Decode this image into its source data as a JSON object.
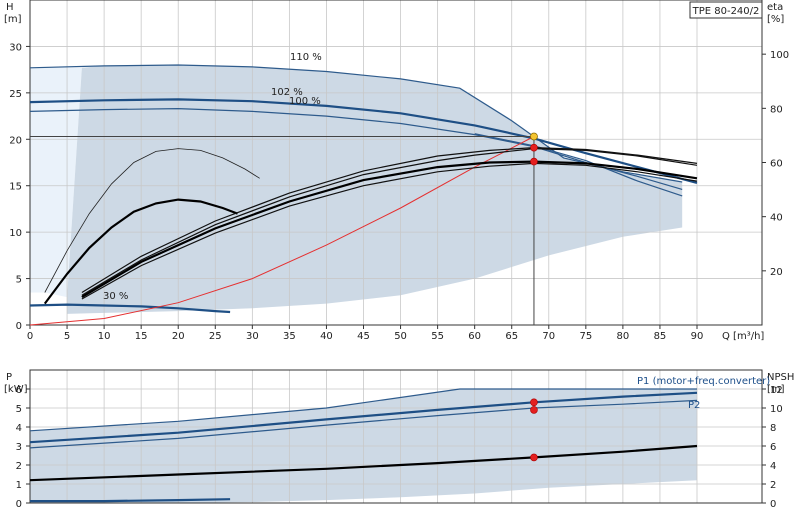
{
  "chart_title": "TPE 80-240/2",
  "colors": {
    "area": "#cdd9e5",
    "curve_blue": "#1e4f85",
    "system_curve": "#e53030",
    "duty_marker": "#e41f1f",
    "duty_marker_top": "#f4c430"
  },
  "chart_data": [
    {
      "type": "line",
      "name": "head-curves",
      "ylabel_left": [
        "H",
        "[m]"
      ],
      "ylabel_right": [
        "eta",
        "[%]"
      ],
      "xlabel": "Q [m³/h]",
      "xlim": [
        0,
        90
      ],
      "ylim": [
        0,
        35
      ],
      "y2lim": [
        0,
        120
      ],
      "xticks": [
        0,
        5,
        10,
        15,
        20,
        25,
        30,
        35,
        40,
        45,
        50,
        55,
        60,
        65,
        70,
        75,
        80,
        85,
        90
      ],
      "yticks": [
        0,
        5,
        10,
        15,
        20,
        25,
        30
      ],
      "y2ticks": [
        20,
        40,
        60,
        80,
        100
      ],
      "grid": true,
      "annotations": [
        "110 %",
        "102 %",
        "100 %",
        "30 %"
      ],
      "series": [
        {
          "label": "110 %",
          "style": "blue",
          "points": [
            [
              0,
              27.7
            ],
            [
              10,
              27.9
            ],
            [
              20,
              28
            ],
            [
              30,
              27.8
            ],
            [
              40,
              27.3
            ],
            [
              50,
              26.5
            ],
            [
              58,
              25.5
            ],
            [
              65,
              22
            ],
            [
              72,
              18
            ],
            [
              80,
              16.5
            ],
            [
              88,
              15.4
            ]
          ]
        },
        {
          "label": "102 %",
          "style": "blue-bold",
          "points": [
            [
              0,
              24
            ],
            [
              10,
              24.2
            ],
            [
              20,
              24.3
            ],
            [
              30,
              24.1
            ],
            [
              40,
              23.6
            ],
            [
              50,
              22.8
            ],
            [
              60,
              21.5
            ],
            [
              68,
              20.1
            ],
            [
              75,
              18.5
            ],
            [
              82,
              17
            ],
            [
              90,
              15.3
            ]
          ]
        },
        {
          "label": "100 %",
          "style": "blue",
          "points": [
            [
              0,
              23
            ],
            [
              10,
              23.2
            ],
            [
              20,
              23.3
            ],
            [
              30,
              23
            ],
            [
              40,
              22.5
            ],
            [
              50,
              21.7
            ],
            [
              60,
              20.5
            ],
            [
              68,
              19.2
            ],
            [
              75,
              17.5
            ],
            [
              82,
              16
            ],
            [
              88,
              14.6
            ]
          ]
        },
        {
          "style": "blue",
          "points": [
            [
              60,
              20.6
            ],
            [
              68,
              19.3
            ],
            [
              75,
              17.7
            ],
            [
              82,
              15.5
            ],
            [
              88,
              13.9
            ]
          ]
        },
        {
          "label": "30 %",
          "style": "blue-bold",
          "points": [
            [
              0,
              2.1
            ],
            [
              5,
              2.2
            ],
            [
              10,
              2.1
            ],
            [
              15,
              2
            ],
            [
              20,
              1.8
            ],
            [
              25,
              1.5
            ],
            [
              27,
              1.4
            ]
          ]
        },
        {
          "style": "red",
          "points": [
            [
              0,
              0
            ],
            [
              10,
              0.7
            ],
            [
              20,
              2.4
            ],
            [
              30,
              5
            ],
            [
              40,
              8.6
            ],
            [
              50,
              12.6
            ],
            [
              60,
              17
            ],
            [
              68,
              20.3
            ]
          ]
        },
        {
          "style": "black-thin",
          "points": [
            [
              2,
              3.5
            ],
            [
              5,
              8
            ],
            [
              8,
              12
            ],
            [
              11,
              15.2
            ],
            [
              14,
              17.5
            ],
            [
              17,
              18.7
            ],
            [
              20,
              19
            ],
            [
              23,
              18.8
            ],
            [
              26,
              18
            ],
            [
              29,
              16.8
            ],
            [
              31,
              15.8
            ]
          ]
        },
        {
          "style": "black-bold",
          "points": [
            [
              2,
              2.3
            ],
            [
              5,
              5.5
            ],
            [
              8,
              8.3
            ],
            [
              11,
              10.5
            ],
            [
              14,
              12.2
            ],
            [
              17,
              13.1
            ],
            [
              20,
              13.5
            ],
            [
              23,
              13.3
            ],
            [
              26,
              12.6
            ],
            [
              28,
              12
            ]
          ]
        },
        {
          "style": "black",
          "points": [
            [
              7,
              3.2
            ],
            [
              15,
              7
            ],
            [
              25,
              10.8
            ],
            [
              35,
              13.8
            ],
            [
              45,
              16.2
            ],
            [
              55,
              17.7
            ],
            [
              60,
              18.3
            ],
            [
              68,
              19
            ],
            [
              75,
              18.8
            ],
            [
              82,
              18.2
            ],
            [
              90,
              17.2
            ]
          ]
        },
        {
          "style": "black",
          "points": [
            [
              7,
              3.5
            ],
            [
              15,
              7.4
            ],
            [
              25,
              11.2
            ],
            [
              35,
              14.2
            ],
            [
              45,
              16.6
            ],
            [
              55,
              18.2
            ],
            [
              62,
              18.8
            ],
            [
              68,
              19.1
            ],
            [
              75,
              18.9
            ],
            [
              82,
              18.3
            ],
            [
              90,
              17.4
            ]
          ]
        },
        {
          "style": "black-bold",
          "points": [
            [
              7,
              3
            ],
            [
              15,
              6.8
            ],
            [
              25,
              10.4
            ],
            [
              35,
              13.3
            ],
            [
              45,
              15.6
            ],
            [
              55,
              17
            ],
            [
              62,
              17.5
            ],
            [
              68,
              17.6
            ],
            [
              75,
              17.4
            ],
            [
              82,
              16.8
            ],
            [
              90,
              15.8
            ]
          ]
        },
        {
          "style": "black",
          "points": [
            [
              7,
              2.8
            ],
            [
              15,
              6.4
            ],
            [
              25,
              9.9
            ],
            [
              35,
              12.8
            ],
            [
              45,
              15
            ],
            [
              55,
              16.5
            ],
            [
              62,
              17.1
            ],
            [
              68,
              17.4
            ],
            [
              75,
              17.2
            ],
            [
              82,
              16.5
            ],
            [
              90,
              15.5
            ]
          ]
        }
      ],
      "markers": [
        {
          "x": 68,
          "y": 20.3,
          "color": "yellow"
        },
        {
          "x": 68,
          "y": 19.1,
          "color": "red"
        },
        {
          "x": 68,
          "y": 17.6,
          "color": "red"
        }
      ],
      "duty_reference": {
        "x": 68,
        "y": 20.3
      }
    },
    {
      "type": "line",
      "name": "power-npsh",
      "ylabel_left": [
        "P",
        "[kW]"
      ],
      "ylabel_right": [
        "NPSH",
        "[m]"
      ],
      "xlim": [
        0,
        90
      ],
      "ylim": [
        0,
        7
      ],
      "y2lim": [
        0,
        14
      ],
      "yticks": [
        0,
        1,
        2,
        3,
        4,
        5,
        6
      ],
      "y2ticks": [
        0,
        2,
        4,
        6,
        8,
        10,
        12
      ],
      "grid": true,
      "series": [
        {
          "name": "P1 (motor+freq.converter)",
          "style": "blue",
          "points": [
            [
              0,
              3.8
            ],
            [
              20,
              4.3
            ],
            [
              40,
              5
            ],
            [
              58,
              6
            ],
            [
              68,
              6
            ],
            [
              80,
              6
            ],
            [
              90,
              6
            ]
          ]
        },
        {
          "style": "blue-bold",
          "points": [
            [
              0,
              3.2
            ],
            [
              20,
              3.7
            ],
            [
              40,
              4.4
            ],
            [
              55,
              4.9
            ],
            [
              68,
              5.3
            ],
            [
              80,
              5.6
            ],
            [
              90,
              5.8
            ]
          ]
        },
        {
          "name": "P2",
          "style": "blue",
          "points": [
            [
              0,
              2.9
            ],
            [
              20,
              3.4
            ],
            [
              40,
              4.1
            ],
            [
              55,
              4.6
            ],
            [
              68,
              5
            ],
            [
              80,
              5.2
            ],
            [
              90,
              5.4
            ]
          ]
        },
        {
          "style": "black-bold",
          "points": [
            [
              0,
              1.2
            ],
            [
              20,
              1.5
            ],
            [
              40,
              1.8
            ],
            [
              55,
              2.1
            ],
            [
              68,
              2.4
            ],
            [
              80,
              2.7
            ],
            [
              90,
              3
            ]
          ]
        },
        {
          "style": "blue-bold",
          "points": [
            [
              0,
              0.1
            ],
            [
              10,
              0.1
            ],
            [
              20,
              0.15
            ],
            [
              27,
              0.2
            ]
          ]
        }
      ],
      "markers": [
        {
          "x": 68,
          "y": 5.3,
          "color": "red"
        },
        {
          "x": 68,
          "y": 4.9,
          "color": "red"
        },
        {
          "x": 68,
          "y": 2.4,
          "color": "red"
        }
      ]
    }
  ]
}
